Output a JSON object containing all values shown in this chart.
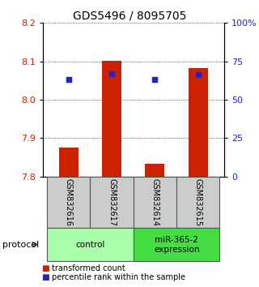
{
  "title": "GDS5496 / 8095705",
  "samples": [
    "GSM832616",
    "GSM832617",
    "GSM832614",
    "GSM832615"
  ],
  "bar_values": [
    7.875,
    8.101,
    7.833,
    8.082
  ],
  "bar_bottom": 7.8,
  "percentile_values": [
    8.052,
    8.068,
    8.052,
    8.065
  ],
  "ylim_left": [
    7.8,
    8.2
  ],
  "ylim_right": [
    0,
    100
  ],
  "yticks_left": [
    7.8,
    7.9,
    8.0,
    8.1,
    8.2
  ],
  "yticks_right": [
    0,
    25,
    50,
    75,
    100
  ],
  "ytick_labels_right": [
    "0",
    "25",
    "50",
    "75",
    "100%"
  ],
  "bar_color": "#cc2200",
  "percentile_color": "#2222cc",
  "groups": [
    {
      "label": "control",
      "color": "#aaffaa"
    },
    {
      "label": "miR-365-2\nexpression",
      "color": "#44dd44"
    }
  ],
  "protocol_label": "protocol",
  "legend_items": [
    {
      "color": "#cc2200",
      "label": "transformed count"
    },
    {
      "color": "#2222cc",
      "label": "percentile rank within the sample"
    }
  ],
  "background_color": "#ffffff",
  "tick_label_color_left": "#cc2200",
  "tick_label_color_right": "#2222cc",
  "sample_box_color": "#cccccc",
  "sample_box_border": "#555555"
}
